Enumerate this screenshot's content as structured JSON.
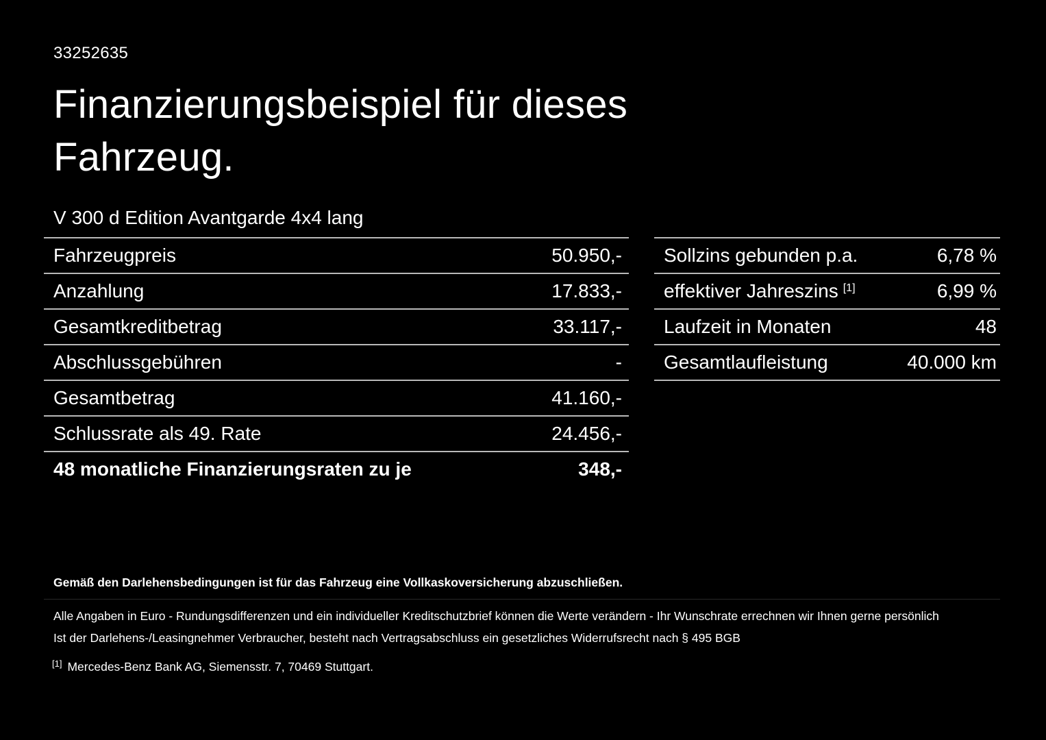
{
  "doc": {
    "id": "33252635",
    "title_line1": "Finanzierungsbeispiel für dieses",
    "title_line2": "Fahrzeug.",
    "vehicle": "V 300 d Edition Avantgarde 4x4 lang"
  },
  "left_table": {
    "rows": [
      {
        "label": "Fahrzeugpreis",
        "value": "50.950,-"
      },
      {
        "label": "Anzahlung",
        "value": "17.833,-"
      },
      {
        "label": "Gesamtkreditbetrag",
        "value": "33.117,-"
      },
      {
        "label": "Abschlussgebühren",
        "value": "-"
      },
      {
        "label": "Gesamtbetrag",
        "value": "41.160,-"
      },
      {
        "label": "Schlussrate als 49. Rate",
        "value": "24.456,-"
      },
      {
        "label": "48 monatliche Finanzierungsraten zu je",
        "value": "348,-"
      }
    ]
  },
  "right_table": {
    "rows": [
      {
        "label": "Sollzins gebunden p.a.",
        "value": "6,78 %"
      },
      {
        "label": "effektiver Jahreszins",
        "sup": "[1]",
        "value": "6,99 %"
      },
      {
        "label": "Laufzeit in Monaten",
        "value": "48"
      },
      {
        "label": "Gesamtlaufleistung",
        "value": "40.000 km"
      }
    ]
  },
  "footer": {
    "bold_note": "Gemäß den Darlehensbedingungen ist für das Fahrzeug eine Vollkaskoversicherung abzuschließen.",
    "note1": "Alle Angaben in Euro - Rundungsdifferenzen und ein individueller Kreditschutzbrief können die Werte verändern - Ihr Wunschrate errechnen wir Ihnen gerne persönlich",
    "note2": "Ist der Darlehens-/Leasingnehmer Verbraucher, besteht nach Vertragsabschluss ein gesetzliches Widerrufsrecht nach § 495 BGB",
    "footnote_marker": "[1]",
    "footnote_text": "Mercedes-Benz Bank AG, Siemensstr. 7, 70469 Stuttgart."
  },
  "colors": {
    "background": "#000000",
    "text": "#ffffff",
    "rule": "#b9b9b9"
  }
}
